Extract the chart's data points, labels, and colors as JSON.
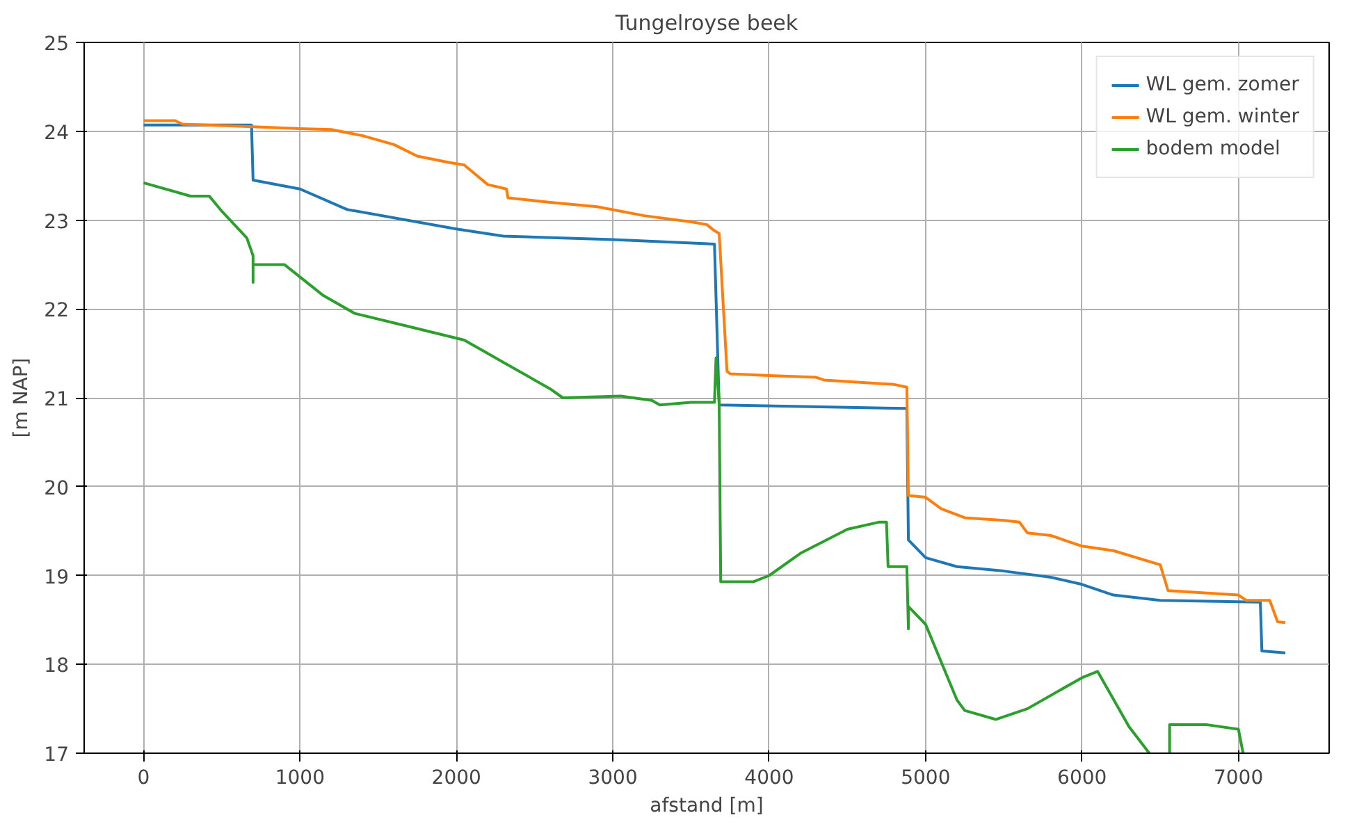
{
  "chart_data": {
    "type": "line",
    "title": "Tungelroyse beek",
    "xlabel": "afstand [m]",
    "ylabel": "[m NAP]",
    "xlim": [
      -380,
      7580
    ],
    "ylim": [
      17,
      25
    ],
    "xticks": [
      0,
      1000,
      2000,
      3000,
      4000,
      5000,
      6000,
      7000
    ],
    "yticks": [
      17,
      18,
      19,
      20,
      21,
      22,
      23,
      24,
      25
    ],
    "grid": true,
    "legend": "top right",
    "series": [
      {
        "name": "WL gem. zomer",
        "color": "#1f77b4",
        "x": [
          0,
          690,
          700,
          1000,
          1300,
          2000,
          2300,
          3000,
          3650,
          3680,
          4880,
          4890,
          5000,
          5200,
          5500,
          5800,
          6000,
          6200,
          6500,
          7140,
          7150,
          7300
        ],
        "values": [
          24.07,
          24.07,
          23.45,
          23.35,
          23.12,
          22.9,
          22.82,
          22.78,
          22.73,
          20.92,
          20.88,
          19.4,
          19.2,
          19.1,
          19.05,
          18.98,
          18.9,
          18.78,
          18.72,
          18.7,
          18.15,
          18.13
        ]
      },
      {
        "name": "WL gem. winter",
        "color": "#ff7f0e",
        "x": [
          0,
          200,
          250,
          700,
          1000,
          1200,
          1400,
          1600,
          1750,
          1950,
          2050,
          2200,
          2320,
          2330,
          2600,
          2900,
          3200,
          3500,
          3600,
          3650,
          3680,
          3730,
          3750,
          4000,
          4300,
          4350,
          4800,
          4880,
          4890,
          5000,
          5100,
          5250,
          5500,
          5600,
          5650,
          5800,
          6000,
          6200,
          6500,
          6550,
          7000,
          7050,
          7200,
          7250,
          7300
        ],
        "values": [
          24.12,
          24.12,
          24.08,
          24.05,
          24.03,
          24.02,
          23.95,
          23.85,
          23.72,
          23.65,
          23.62,
          23.4,
          23.35,
          23.25,
          23.2,
          23.15,
          23.05,
          22.98,
          22.95,
          22.88,
          22.85,
          21.3,
          21.27,
          21.25,
          21.23,
          21.2,
          21.15,
          21.12,
          19.9,
          19.88,
          19.75,
          19.65,
          19.62,
          19.6,
          19.48,
          19.45,
          19.33,
          19.28,
          19.12,
          18.83,
          18.78,
          18.72,
          18.72,
          18.48,
          18.47
        ]
      },
      {
        "name": "bodem model",
        "color": "#2ca02c",
        "x": [
          0,
          300,
          420,
          500,
          660,
          700,
          700,
          700,
          900,
          1150,
          1350,
          1700,
          2050,
          2300,
          2600,
          2680,
          3050,
          3250,
          3300,
          3500,
          3650,
          3660,
          3680,
          3690,
          3900,
          4000,
          4200,
          4500,
          4700,
          4750,
          4760,
          4880,
          4890,
          4890,
          5000,
          5200,
          5250,
          5450,
          5650,
          6000,
          6100,
          6300,
          6430,
          6500,
          6560,
          6560,
          6800,
          7000,
          7030
        ],
        "values": [
          23.42,
          23.27,
          23.27,
          23.1,
          22.8,
          22.6,
          22.3,
          22.5,
          22.5,
          22.15,
          21.95,
          21.8,
          21.65,
          21.4,
          21.1,
          21.0,
          21.02,
          20.97,
          20.92,
          20.95,
          20.95,
          21.45,
          20.95,
          18.93,
          18.93,
          19.0,
          19.25,
          19.52,
          19.6,
          19.6,
          19.1,
          19.1,
          18.4,
          18.65,
          18.45,
          17.6,
          17.48,
          17.38,
          17.5,
          17.85,
          17.92,
          17.3,
          17.0,
          null,
          17.0,
          17.32,
          17.32,
          17.27,
          17.0
        ]
      }
    ]
  }
}
